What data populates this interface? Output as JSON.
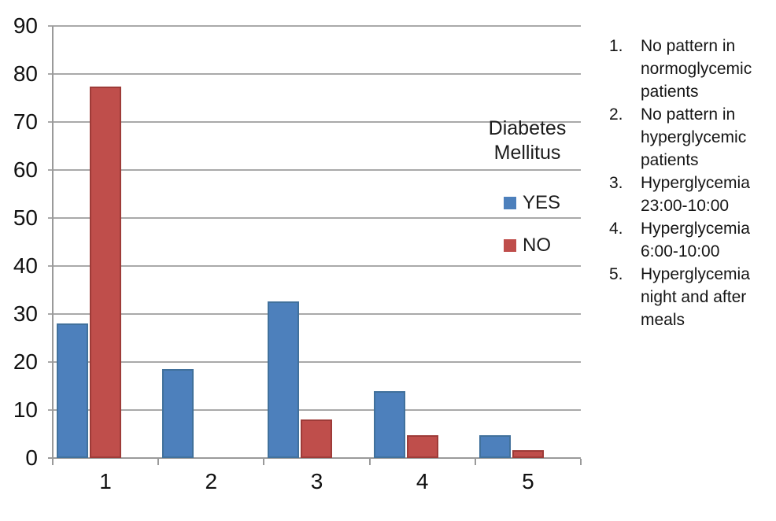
{
  "chart_data": {
    "type": "bar",
    "title": "",
    "xlabel": "",
    "ylabel": "",
    "categories": [
      "1",
      "2",
      "3",
      "4",
      "5"
    ],
    "series": [
      {
        "name": "YES",
        "color": "#4d80bc",
        "border_color": "#41719c",
        "values": [
          28,
          18.6,
          32.6,
          14,
          4.7
        ]
      },
      {
        "name": "NO",
        "color": "#bf4e4b",
        "border_color": "#9e3b38",
        "values": [
          77.3,
          0,
          8.1,
          4.7,
          1.6
        ]
      }
    ],
    "ylim": [
      0,
      90
    ],
    "ytick_step": 10,
    "grid": "horizontal",
    "gridline_color": "#a9a9a9",
    "axis_color": "#9a9a9a",
    "legend_position": "inside-top-right"
  },
  "legend": {
    "title_line1": "Diabetes",
    "title_line2": "Mellitus",
    "items": [
      {
        "label": "YES",
        "color": "#4d80bc"
      },
      {
        "label": "NO",
        "color": "#bf4e4b"
      }
    ]
  },
  "notes": [
    {
      "num": "1.",
      "text": "No pattern in normoglycemic patients"
    },
    {
      "num": "2.",
      "text": "No  pattern in hyperglycemic patients"
    },
    {
      "num": "3.",
      "text": "Hyperglycemia 23:00-10:00"
    },
    {
      "num": "4.",
      "text": "Hyperglycemia 6:00-10:00"
    },
    {
      "num": "5.",
      "text": "Hyperglycemia night and after meals"
    }
  ]
}
